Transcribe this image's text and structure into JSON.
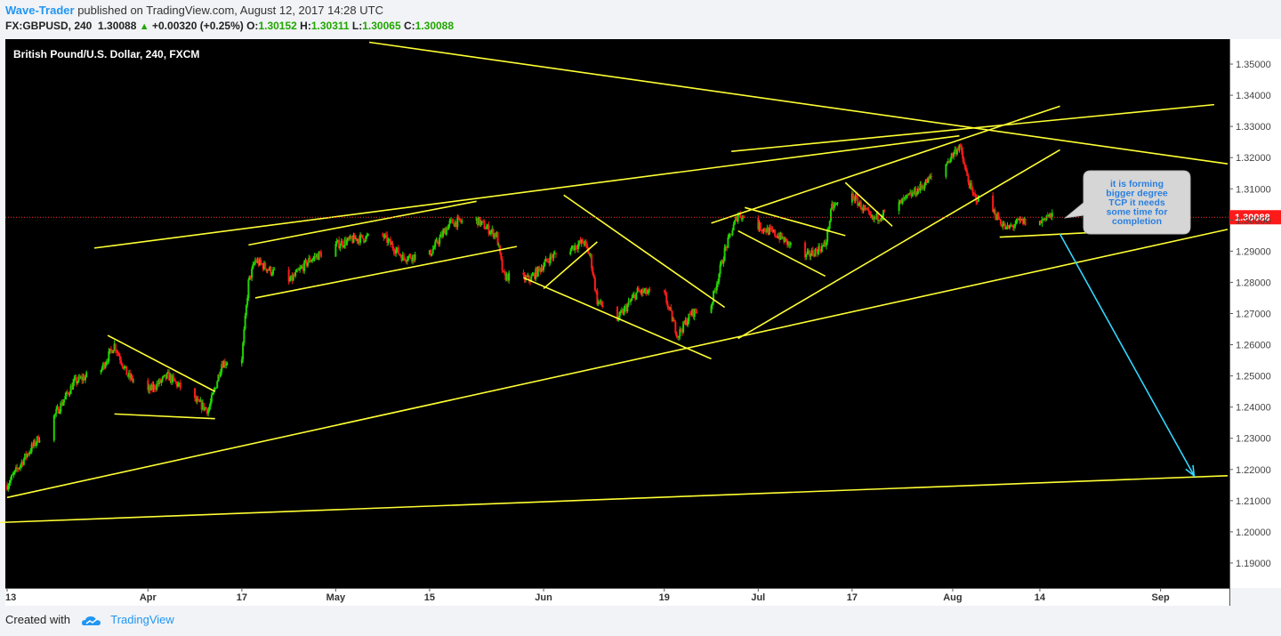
{
  "header": {
    "author": "Wave-Trader",
    "published_text": "published on TradingView.com, August 12, 2017 14:28 UTC",
    "symbol": "FX:GBPUSD, 240",
    "last": "1.30088",
    "change_arrow": "▲",
    "change": "+0.00320 (+0.25%)",
    "o_label": "O:",
    "o_value": "1.30152",
    "h_label": "H:",
    "h_value": "1.30311",
    "l_label": "L:",
    "l_value": "1.30065",
    "c_label": "C:",
    "c_value": "1.30088"
  },
  "footer": {
    "created_with": "Created with",
    "brand": "TradingView"
  },
  "colors": {
    "up": "#22d400",
    "down": "#ff1a1a",
    "trendline": "#ffff33",
    "arrow": "#33d6ff",
    "price_line": "#ff2a2a",
    "background": "#000000"
  },
  "chart_data": {
    "type": "candlestick",
    "title": "British Pound/U.S. Dollar, 240, FXCM",
    "ylim": [
      1.182,
      1.358
    ],
    "y_ticks": [
      "1.35000",
      "1.34000",
      "1.33000",
      "1.32000",
      "1.31000",
      "1.30000",
      "1.29000",
      "1.28000",
      "1.27000",
      "1.26000",
      "1.25000",
      "1.24000",
      "1.23000",
      "1.22000",
      "1.21000",
      "1.20000",
      "1.19000"
    ],
    "y_tick_values": [
      1.35,
      1.34,
      1.33,
      1.32,
      1.31,
      1.3,
      1.29,
      1.28,
      1.27,
      1.26,
      1.25,
      1.24,
      1.23,
      1.22,
      1.21,
      1.2,
      1.19
    ],
    "x_range": [
      "2017-03-13",
      "2017-09-11"
    ],
    "x_ticks": [
      {
        "label": "13",
        "date": "2017-03-13"
      },
      {
        "label": "Apr",
        "date": "2017-04-03"
      },
      {
        "label": "17",
        "date": "2017-04-17"
      },
      {
        "label": "May",
        "date": "2017-05-01"
      },
      {
        "label": "15",
        "date": "2017-05-15"
      },
      {
        "label": "Jun",
        "date": "2017-06-01"
      },
      {
        "label": "19",
        "date": "2017-06-19"
      },
      {
        "label": "Jul",
        "date": "2017-07-03"
      },
      {
        "label": "17",
        "date": "2017-07-17"
      },
      {
        "label": "Aug",
        "date": "2017-08-01"
      },
      {
        "label": "14",
        "date": "2017-08-14"
      },
      {
        "label": "Sep",
        "date": "2017-09-01"
      }
    ],
    "last_price": 1.30088,
    "last_price_label": "1.30088",
    "price_path": [
      [
        "2017-03-13",
        1.215
      ],
      [
        "2017-03-16",
        1.225
      ],
      [
        "2017-03-20",
        1.237
      ],
      [
        "2017-03-23",
        1.248
      ],
      [
        "2017-03-27",
        1.252
      ],
      [
        "2017-03-29",
        1.26
      ],
      [
        "2017-03-31",
        1.25
      ],
      [
        "2017-04-03",
        1.245
      ],
      [
        "2017-04-06",
        1.25
      ],
      [
        "2017-04-10",
        1.242
      ],
      [
        "2017-04-12",
        1.239
      ],
      [
        "2017-04-13",
        1.246
      ],
      [
        "2017-04-14",
        1.254
      ],
      [
        "2017-04-17",
        1.256
      ],
      [
        "2017-04-18",
        1.28
      ],
      [
        "2017-04-19",
        1.287
      ],
      [
        "2017-04-24",
        1.28
      ],
      [
        "2017-04-27",
        1.287
      ],
      [
        "2017-05-01",
        1.292
      ],
      [
        "2017-05-04",
        1.294
      ],
      [
        "2017-05-08",
        1.295
      ],
      [
        "2017-05-11",
        1.288
      ],
      [
        "2017-05-15",
        1.289
      ],
      [
        "2017-05-18",
        1.299
      ],
      [
        "2017-05-22",
        1.3
      ],
      [
        "2017-05-25",
        1.295
      ],
      [
        "2017-05-26",
        1.282
      ],
      [
        "2017-05-30",
        1.281
      ],
      [
        "2017-06-02",
        1.288
      ],
      [
        "2017-06-05",
        1.291
      ],
      [
        "2017-06-07",
        1.293
      ],
      [
        "2017-06-08",
        1.288
      ],
      [
        "2017-06-09",
        1.274
      ],
      [
        "2017-06-12",
        1.268
      ],
      [
        "2017-06-15",
        1.277
      ],
      [
        "2017-06-19",
        1.276
      ],
      [
        "2017-06-21",
        1.263
      ],
      [
        "2017-06-23",
        1.27
      ],
      [
        "2017-06-26",
        1.273
      ],
      [
        "2017-06-28",
        1.29
      ],
      [
        "2017-06-30",
        1.302
      ],
      [
        "2017-07-03",
        1.298
      ],
      [
        "2017-07-06",
        1.295
      ],
      [
        "2017-07-10",
        1.288
      ],
      [
        "2017-07-13",
        1.292
      ],
      [
        "2017-07-14",
        1.304
      ],
      [
        "2017-07-17",
        1.308
      ],
      [
        "2017-07-20",
        1.3
      ],
      [
        "2017-07-24",
        1.305
      ],
      [
        "2017-07-27",
        1.31
      ],
      [
        "2017-07-31",
        1.318
      ],
      [
        "2017-08-02",
        1.324
      ],
      [
        "2017-08-03",
        1.315
      ],
      [
        "2017-08-04",
        1.308
      ],
      [
        "2017-08-07",
        1.303
      ],
      [
        "2017-08-09",
        1.297
      ],
      [
        "2017-08-11",
        1.2995
      ],
      [
        "2017-08-14",
        1.299
      ],
      [
        "2017-08-15",
        1.3015
      ],
      [
        "2017-08-16",
        1.3009
      ]
    ],
    "trendlines": [
      {
        "from": [
          "2017-03-13",
          1.211
        ],
        "to": [
          "2017-09-11",
          1.297
        ]
      },
      {
        "from": [
          "2017-03-12",
          1.203
        ],
        "to": [
          "2017-09-11",
          1.218
        ]
      },
      {
        "from": [
          "2017-03-26",
          1.291
        ],
        "to": [
          "2017-08-02",
          1.327
        ]
      },
      {
        "from": [
          "2017-04-18",
          1.292
        ],
        "to": [
          "2017-05-22",
          1.306
        ]
      },
      {
        "from": [
          "2017-04-19",
          1.275
        ],
        "to": [
          "2017-05-28",
          1.2915
        ]
      },
      {
        "from": [
          "2017-03-28",
          1.263
        ],
        "to": [
          "2017-04-13",
          1.245
        ]
      },
      {
        "from": [
          "2017-03-29",
          1.2378
        ],
        "to": [
          "2017-04-13",
          1.2363
        ]
      },
      {
        "from": [
          "2017-05-29",
          1.2815
        ],
        "to": [
          "2017-06-26",
          1.2555
        ]
      },
      {
        "from": [
          "2017-06-04",
          1.308
        ],
        "to": [
          "2017-06-28",
          1.272
        ]
      },
      {
        "from": [
          "2017-06-01",
          1.278
        ],
        "to": [
          "2017-06-09",
          1.293
        ]
      },
      {
        "from": [
          "2017-06-26",
          1.299
        ],
        "to": [
          "2017-08-17",
          1.3365
        ]
      },
      {
        "from": [
          "2017-06-30",
          1.262
        ],
        "to": [
          "2017-08-17",
          1.3225
        ]
      },
      {
        "from": [
          "2017-07-01",
          1.304
        ],
        "to": [
          "2017-07-16",
          1.295
        ]
      },
      {
        "from": [
          "2017-06-30",
          1.2965
        ],
        "to": [
          "2017-07-13",
          1.282
        ]
      },
      {
        "from": [
          "2017-07-16",
          1.312
        ],
        "to": [
          "2017-07-23",
          1.298
        ]
      },
      {
        "from": [
          "2017-05-06",
          1.357
        ],
        "to": [
          "2017-09-11",
          1.318
        ]
      },
      {
        "from": [
          "2017-06-29",
          1.322
        ],
        "to": [
          "2017-09-09",
          1.337
        ]
      },
      {
        "from": [
          "2017-08-08",
          1.2945
        ],
        "to": [
          "2017-08-22",
          1.296
        ]
      }
    ],
    "annotation_arrow": {
      "from": [
        "2017-08-17",
        1.2955
      ],
      "to": [
        "2017-09-06",
        1.218
      ]
    },
    "annotation": {
      "lines": [
        "it is forming",
        "bigger degree",
        "TCP it needs",
        "some time for",
        "completion"
      ],
      "anchor": [
        "2017-08-17",
        1.3007
      ]
    }
  }
}
